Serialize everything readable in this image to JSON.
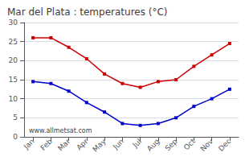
{
  "chart_data": {
    "type": "line",
    "title": "Mar del Plata : temperatures (°C)",
    "categories": [
      "Jan",
      "Feb",
      "Mar",
      "Apr",
      "May",
      "Jun",
      "Jul",
      "Aug",
      "Sep",
      "Oct",
      "Nov",
      "Dec"
    ],
    "series": [
      {
        "color": "#cc0000",
        "marker": "square",
        "values": [
          26,
          26,
          23.5,
          20.5,
          16.5,
          14,
          13,
          14.5,
          15,
          18.5,
          21.5,
          24.5
        ]
      },
      {
        "color": "#0000cc",
        "marker": "square",
        "values": [
          14.5,
          14,
          12,
          9,
          6.5,
          3.5,
          3,
          3.5,
          5,
          8,
          10,
          12.5
        ]
      }
    ],
    "ylim": [
      0,
      30
    ],
    "yticks": [
      0,
      5,
      10,
      15,
      20,
      25,
      30
    ],
    "grid": true,
    "annotation": "www.allmetsat.com"
  }
}
